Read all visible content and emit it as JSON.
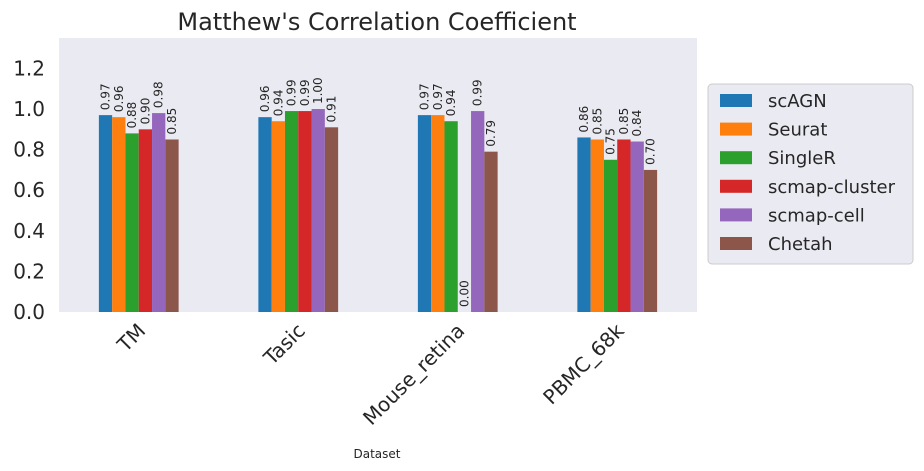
{
  "chart_data": {
    "type": "bar",
    "title": "Matthew's Correlation Coefficient",
    "xlabel": "Dataset",
    "ylabel": "",
    "ylim": [
      0,
      1.35
    ],
    "yticks": [
      "0.0",
      "0.2",
      "0.4",
      "0.6",
      "0.8",
      "1.0",
      "1.2"
    ],
    "categories": [
      "TM",
      "Tasic",
      "Mouse_retina",
      "PBMC_68k"
    ],
    "grid": false,
    "legend_position": "right",
    "series": [
      {
        "name": "scAGN",
        "color": "#1f77b4",
        "values": [
          0.97,
          0.96,
          0.97,
          0.86
        ],
        "labels": [
          "0.97",
          "0.96",
          "0.97",
          "0.86"
        ]
      },
      {
        "name": "Seurat",
        "color": "#ff7f0e",
        "values": [
          0.96,
          0.94,
          0.97,
          0.85
        ],
        "labels": [
          "0.96",
          "0.94",
          "0.97",
          "0.85"
        ]
      },
      {
        "name": "SingleR",
        "color": "#2ca02c",
        "values": [
          0.88,
          0.99,
          0.94,
          0.75
        ],
        "labels": [
          "0.88",
          "0.99",
          "0.94",
          "0.75"
        ]
      },
      {
        "name": "scmap-cluster",
        "color": "#d62728",
        "values": [
          0.9,
          0.99,
          0.0,
          0.85
        ],
        "labels": [
          "0.90",
          "0.99",
          "0.00",
          "0.85"
        ]
      },
      {
        "name": "scmap-cell",
        "color": "#9467bd",
        "values": [
          0.98,
          1.0,
          0.99,
          0.84
        ],
        "labels": [
          "0.98",
          "1.00",
          "0.99",
          "0.84"
        ]
      },
      {
        "name": "Chetah",
        "color": "#8c564b",
        "values": [
          0.85,
          0.91,
          0.79,
          0.7
        ],
        "labels": [
          "0.85",
          "0.91",
          "0.79",
          "0.70"
        ]
      }
    ],
    "plot_background": "#eaeaf2",
    "legend_background": "#eaeaf2"
  }
}
